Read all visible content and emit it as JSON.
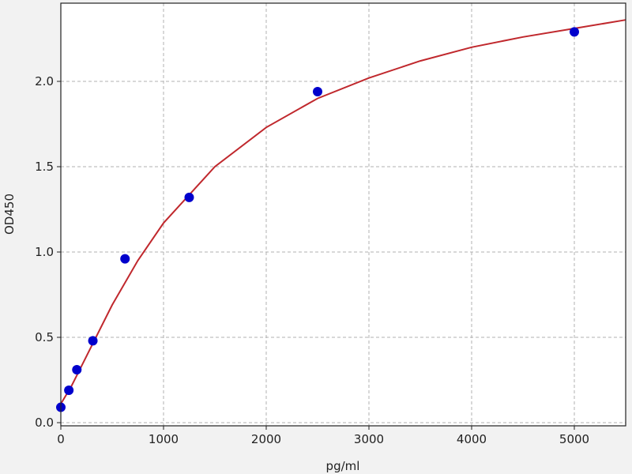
{
  "chart_data": {
    "type": "scatter",
    "title": "",
    "xlabel": "pg/ml",
    "ylabel": "OD450",
    "xlim": [
      0,
      5500
    ],
    "ylim": [
      -0.02,
      2.45
    ],
    "xticks": [
      "0",
      "1000",
      "2000",
      "3000",
      "4000",
      "5000"
    ],
    "yticks": [
      "0.0",
      "0.5",
      "1.0",
      "1.5",
      "2.0"
    ],
    "grid": true,
    "points": {
      "x": [
        0,
        78,
        156,
        312,
        625,
        1250,
        2500,
        5000
      ],
      "y": [
        0.09,
        0.19,
        0.31,
        0.48,
        0.96,
        1.32,
        1.94,
        2.29
      ],
      "color": "#0000cc"
    },
    "fit_curve": {
      "x": [
        0,
        50,
        100,
        150,
        250,
        500,
        750,
        1000,
        1500,
        2000,
        2500,
        3000,
        3500,
        4000,
        4500,
        5000,
        5500
      ],
      "y": [
        0.11,
        0.16,
        0.21,
        0.27,
        0.39,
        0.69,
        0.95,
        1.17,
        1.5,
        1.73,
        1.9,
        2.02,
        2.12,
        2.2,
        2.26,
        2.31,
        2.36
      ],
      "color": "#c0282d"
    }
  }
}
